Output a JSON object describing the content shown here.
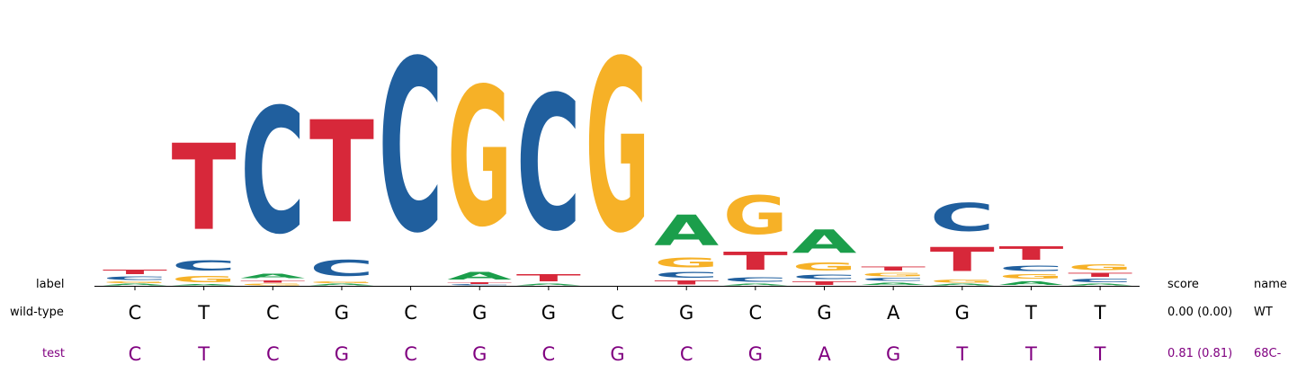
{
  "chart_data": {
    "type": "sequence-logo",
    "alphabet": [
      "A",
      "C",
      "G",
      "T"
    ],
    "colors": {
      "A": "#1b9e4b",
      "C": "#205f9e",
      "G": "#f6b127",
      "T": "#d7283a"
    },
    "positions": [
      {
        "A": 0.03,
        "C": 0.07,
        "G": 0.03,
        "T": 0.09
      },
      {
        "A": 0.02,
        "C": 0.22,
        "G": 0.13,
        "T": 1.79
      },
      {
        "A": 0.09,
        "C": 2.6,
        "G": 0.03,
        "T": 0.05
      },
      {
        "A": 0.03,
        "C": 0.34,
        "G": 0.03,
        "T": 2.12
      },
      {
        "A": 0.0,
        "C": 3.57,
        "G": 0.0,
        "T": 0.0
      },
      {
        "A": 0.16,
        "C": 0.02,
        "G": 2.88,
        "T": 0.03
      },
      {
        "A": 0.03,
        "C": 2.8,
        "G": 0.0,
        "T": 0.14
      },
      {
        "A": 0.0,
        "C": 0.0,
        "G": 3.57,
        "T": 0.0
      },
      {
        "A": 0.63,
        "C": 0.12,
        "G": 0.2,
        "T": 0.08
      },
      {
        "A": 0.03,
        "C": 0.1,
        "G": 0.8,
        "T": 0.38
      },
      {
        "A": 0.48,
        "C": 0.09,
        "G": 0.17,
        "T": 0.07
      },
      {
        "A": 0.05,
        "C": 0.06,
        "G": 0.07,
        "T": 0.08
      },
      {
        "A": 0.03,
        "C": 0.58,
        "G": 0.06,
        "T": 0.5
      },
      {
        "A": 0.07,
        "C": 0.11,
        "G": 0.1,
        "T": 0.28
      },
      {
        "A": 0.03,
        "C": 0.07,
        "G": 0.12,
        "T": 0.08
      }
    ]
  },
  "table": {
    "header": {
      "label": "label",
      "score": "score",
      "name": "name"
    },
    "rows": [
      {
        "label": "wild-type",
        "sequence": [
          "C",
          "T",
          "C",
          "G",
          "C",
          "G",
          "G",
          "C",
          "G",
          "C",
          "G",
          "A",
          "G",
          "T",
          "T"
        ],
        "score": "0.00 (0.00)",
        "name": "WT",
        "color": "#000000"
      },
      {
        "label": "test",
        "sequence": [
          "C",
          "T",
          "C",
          "G",
          "C",
          "G",
          "C",
          "G",
          "C",
          "G",
          "A",
          "G",
          "T",
          "T",
          "T"
        ],
        "score": "0.81 (0.81)",
        "name": "68C-",
        "color": "#800080"
      }
    ]
  }
}
